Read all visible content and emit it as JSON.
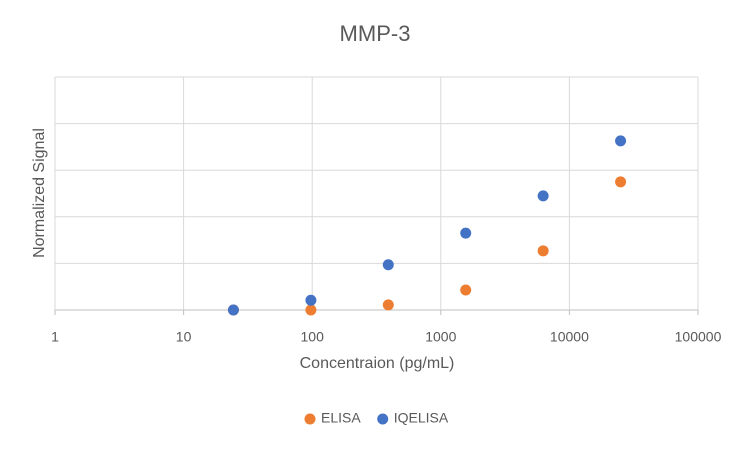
{
  "chart_data": {
    "type": "scatter",
    "title": "MMP-3",
    "x_label": "Concentraion (pg/mL)",
    "y_label": "Normalized Signal",
    "x_log_scale": true,
    "xlim": [
      1,
      100000
    ],
    "xticks": [
      1,
      10,
      100,
      1000,
      10000,
      100000
    ],
    "ylim": [
      0,
      5
    ],
    "yticks": [
      0,
      1,
      2,
      3,
      4,
      5
    ],
    "show_ytick_labels": false,
    "grid": true,
    "legend": "bottom",
    "series": [
      {
        "name": "ELISA",
        "color": "#ed7d31",
        "x": [
          24.4,
          97.7,
          390.6,
          1562.5,
          6250,
          25000
        ],
        "values": [
          0,
          0,
          0.11,
          0.43,
          1.27,
          2.75
        ]
      },
      {
        "name": "IQELISA",
        "color": "#4472c4",
        "x": [
          24.4,
          97.7,
          390.6,
          1562.5,
          6250,
          25000
        ],
        "values": [
          0,
          0.21,
          0.97,
          1.65,
          2.45,
          3.63
        ]
      }
    ]
  }
}
